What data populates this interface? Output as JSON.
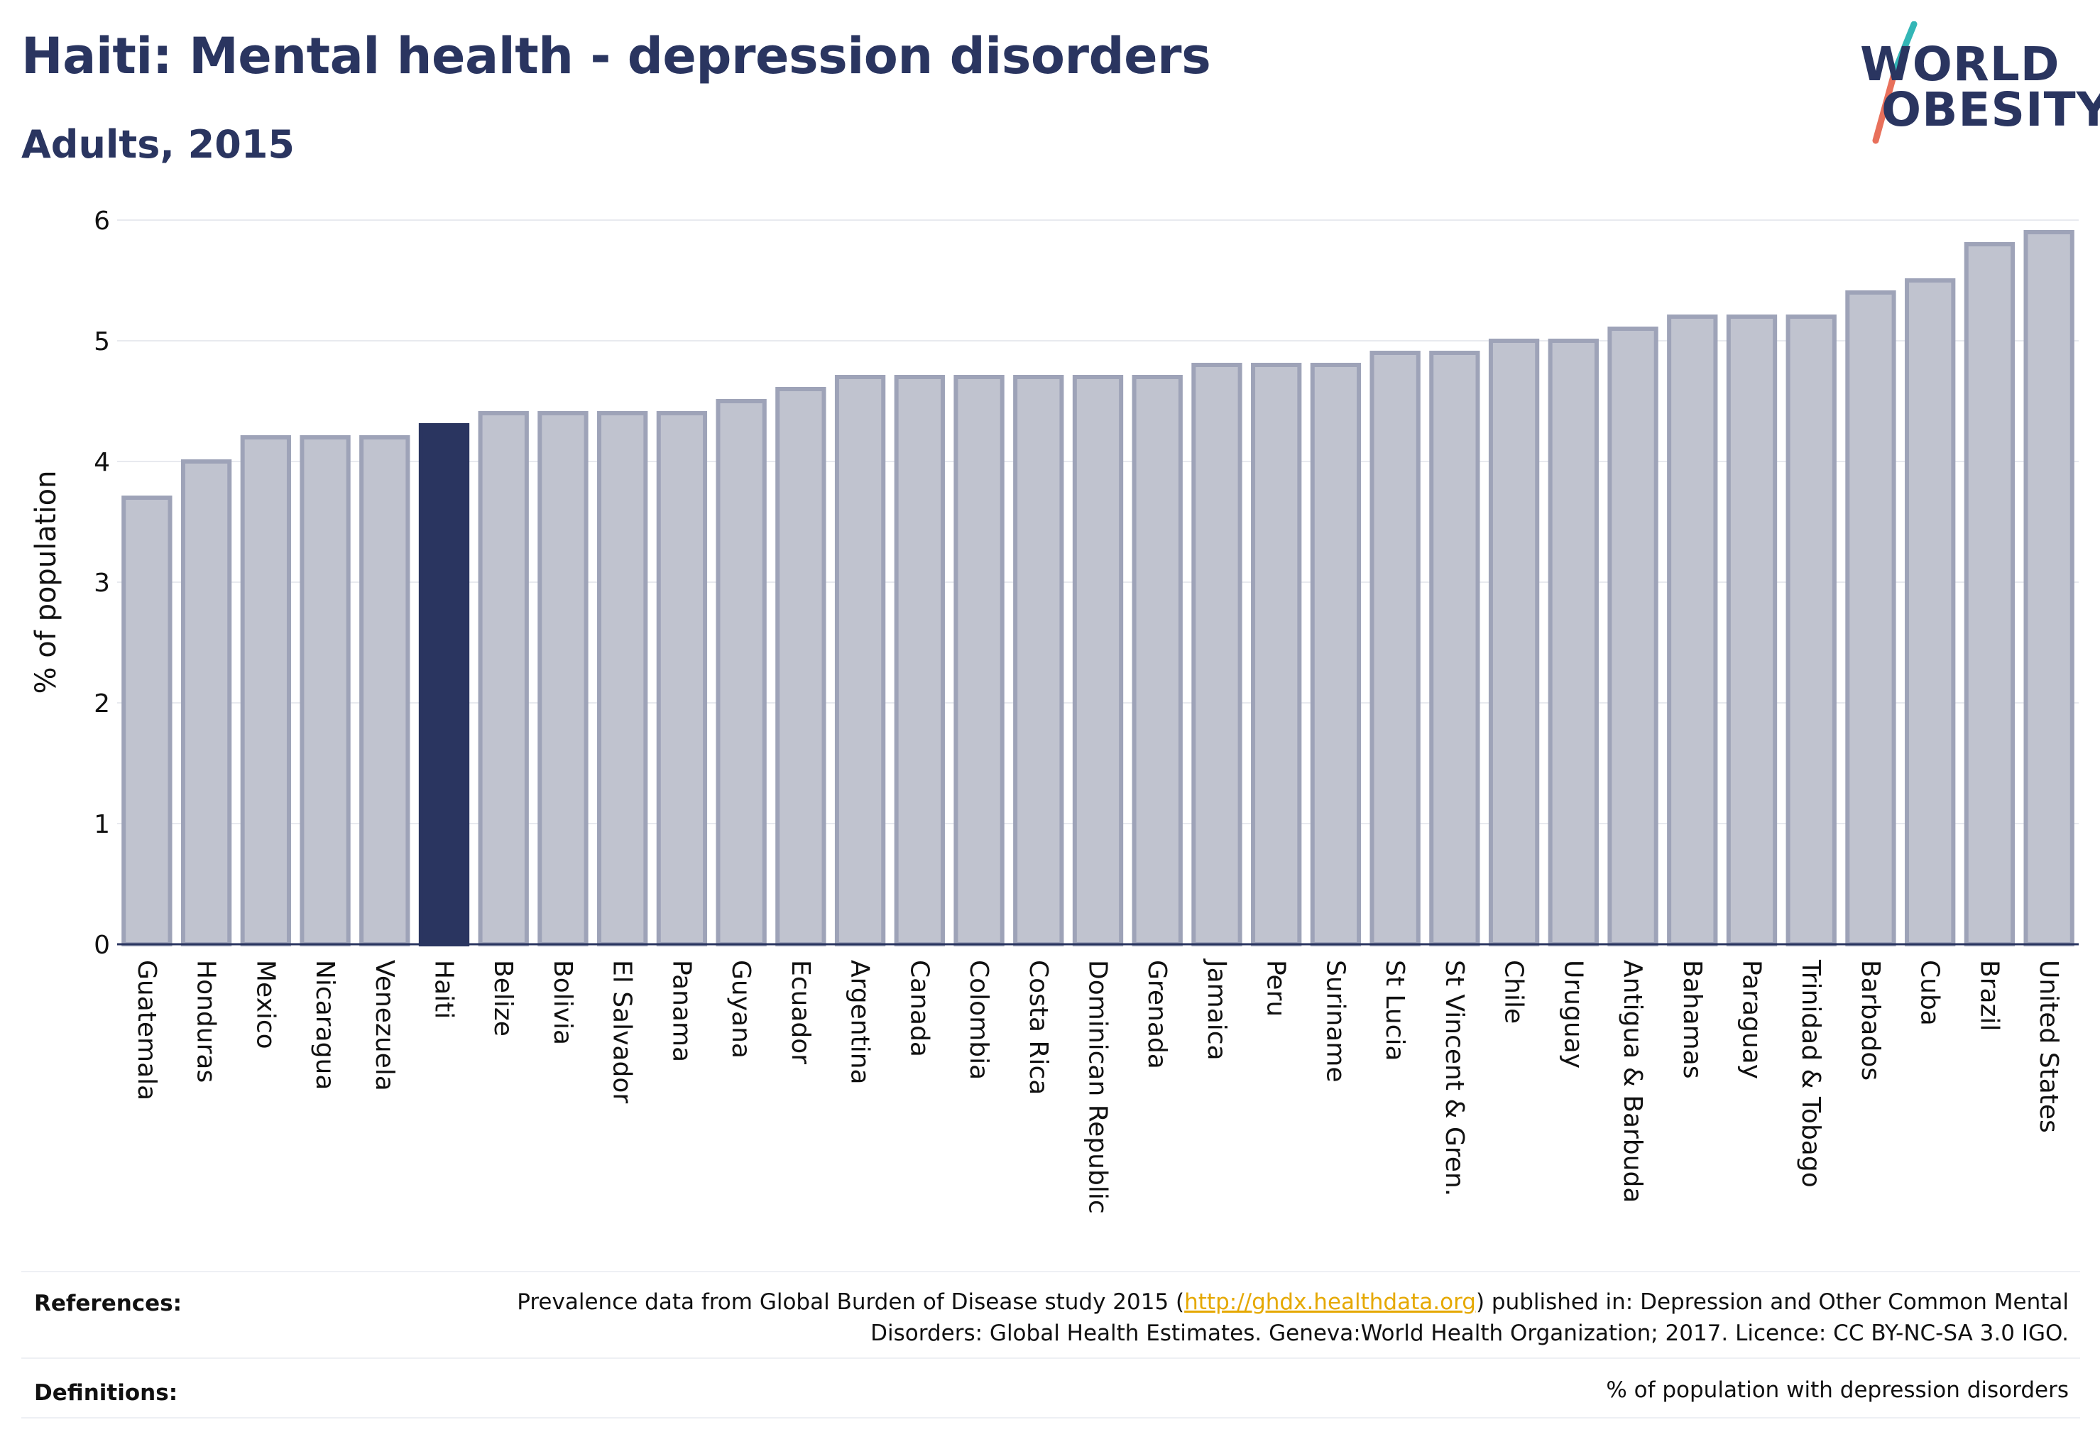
{
  "header": {
    "title": "Haiti: Mental health - depression disorders",
    "subtitle": "Adults, 2015"
  },
  "logo": {
    "line1": "WORLD",
    "line2": "OBESITY"
  },
  "colors": {
    "highlight": "#2a3560",
    "bar_fill": "#c0c3cf",
    "bar_stroke": "#9ea3b8",
    "logo_teal": "#33b6b6",
    "logo_coral": "#e8705b",
    "link": "#e5a800"
  },
  "chart_data": {
    "type": "bar",
    "ylabel": "% of population",
    "xlabel": "",
    "ylim": [
      0,
      6
    ],
    "yticks": [
      "0",
      "1",
      "2",
      "3",
      "4",
      "5",
      "6"
    ],
    "grid": true,
    "highlight": "Haiti",
    "categories": [
      "Guatemala",
      "Honduras",
      "Mexico",
      "Nicaragua",
      "Venezuela",
      "Haiti",
      "Belize",
      "Bolivia",
      "El Salvador",
      "Panama",
      "Guyana",
      "Ecuador",
      "Argentina",
      "Canada",
      "Colombia",
      "Costa Rica",
      "Dominican Republic",
      "Grenada",
      "Jamaica",
      "Peru",
      "Suriname",
      "St Lucia",
      "St Vincent & Gren.",
      "Chile",
      "Uruguay",
      "Antigua & Barbuda",
      "Bahamas",
      "Paraguay",
      "Trinidad & Tobago",
      "Barbados",
      "Cuba",
      "Brazil",
      "United States"
    ],
    "values": [
      3.7,
      4.0,
      4.2,
      4.2,
      4.2,
      4.3,
      4.4,
      4.4,
      4.4,
      4.4,
      4.5,
      4.6,
      4.7,
      4.7,
      4.7,
      4.7,
      4.7,
      4.7,
      4.8,
      4.8,
      4.8,
      4.9,
      4.9,
      5.0,
      5.0,
      5.1,
      5.2,
      5.2,
      5.2,
      5.4,
      5.5,
      5.8,
      5.9
    ]
  },
  "footer": {
    "references_label": "References:",
    "references_prefix": "Prevalence data from Global Burden of Disease study 2015 (",
    "references_link": "http://ghdx.healthdata.org",
    "references_suffix": ") published in: Depression and Other Common Mental Disorders: Global Health Estimates. Geneva:World Health Organization; 2017. Licence: CC BY-NC-SA 3.0 IGO.",
    "definitions_label": "Definitions:",
    "definitions_text": "% of population with depression disorders"
  }
}
